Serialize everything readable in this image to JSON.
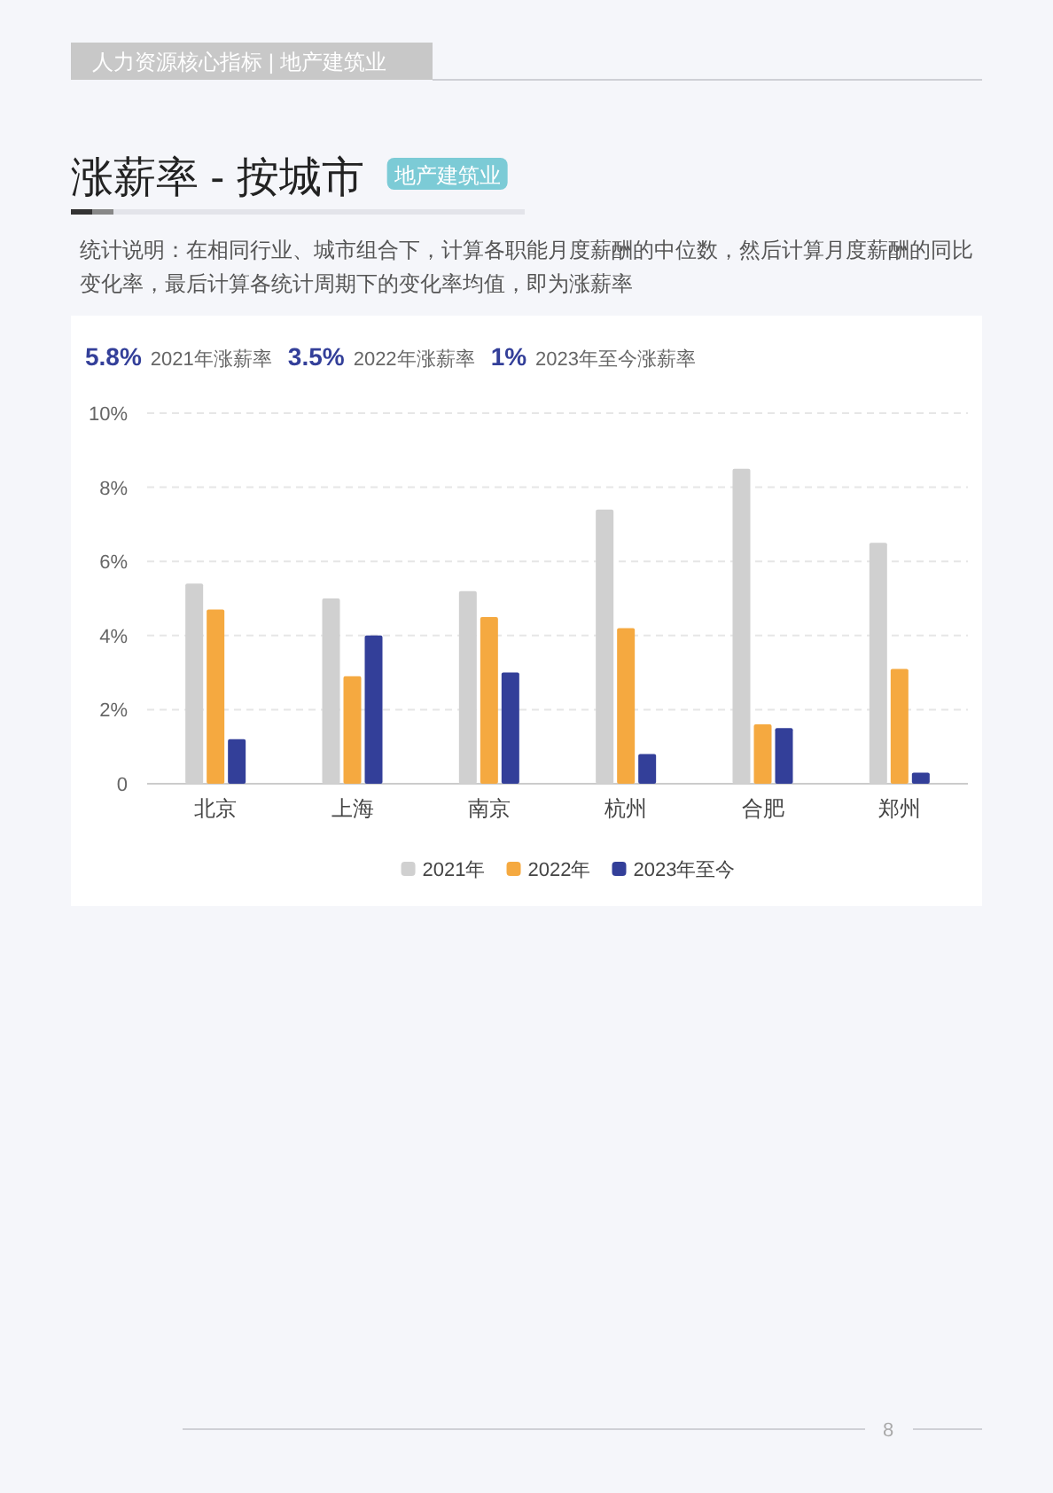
{
  "chart_data": {
    "type": "bar",
    "title": "涨薪率 - 按城市",
    "subtitle": "统计说明：在相同行业、城市组合下，计算各职能月度薪酬的中位数，然后计算月度薪酬的同比变化率，最后计算各统计周期下的变化率均值，即为涨薪率",
    "annotations": [
      "人力资源核心指标  |  地产建筑业",
      "地产建筑业",
      "5.8%",
      "2021年涨薪率",
      "3.5%",
      "2022年涨薪率",
      "1%",
      "2023年至今涨薪率",
      "8"
    ],
    "categories": [
      "北京",
      "上海",
      "南京",
      "杭州",
      "合肥",
      "郑州"
    ],
    "series": [
      {
        "name": "2021年",
        "color": "#d0d0d0",
        "values": [
          5.4,
          5.0,
          5.2,
          7.4,
          8.5,
          6.5
        ]
      },
      {
        "name": "2022年",
        "color": "#f5a940",
        "values": [
          4.7,
          2.9,
          4.5,
          4.2,
          1.6,
          3.1
        ]
      },
      {
        "name": "2023年至今",
        "color": "#333f99",
        "values": [
          1.2,
          4.0,
          3.0,
          0.8,
          1.5,
          0.3
        ]
      }
    ],
    "ylim": [
      0,
      10
    ],
    "yticks": [
      0,
      {
        "value": 2,
        "label": "2%"
      },
      {
        "value": 4,
        "label": "4%"
      },
      {
        "value": 6,
        "label": "6%"
      },
      {
        "value": 8,
        "label": "8%"
      },
      {
        "value": 10,
        "label": "10%"
      }
    ],
    "grid": "y",
    "legend": "bottom"
  }
}
